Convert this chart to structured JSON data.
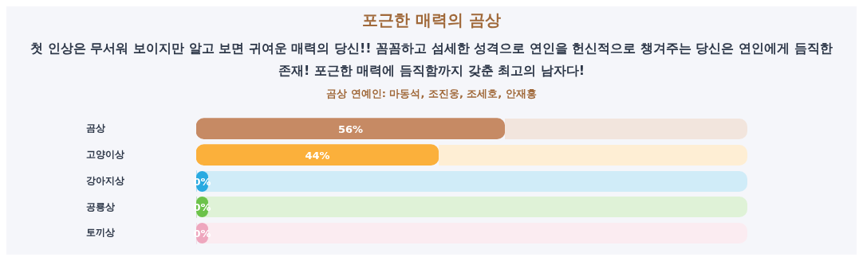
{
  "chart_data": {
    "type": "bar",
    "orientation": "horizontal",
    "title": "포근한 매력의 곰상",
    "subtitle": "첫 인상은 무서워 보이지만 알고 보면 귀여운 매력의 당신!! 꼼꼼하고 섬세한 성격으로 연인을 헌신적으로 챙겨주는 당신은 연인에게 듬직한 존재! 포근한 매력에 듬직함까지 갖춘 최고의 남자다!",
    "annotations": [
      "곰상 연예인: 마동석, 조진웅, 조세호, 안재홍"
    ],
    "categories": [
      "곰상",
      "고양이상",
      "강아지상",
      "공룡상",
      "토끼상"
    ],
    "values": [
      56,
      44,
      0,
      0,
      0
    ],
    "colors": [
      "#c68a64",
      "#fbb03b",
      "#29aae1",
      "#6cc24a",
      "#eea7be"
    ],
    "value_labels": [
      "56%",
      "44%",
      "0%",
      "0%",
      "0%"
    ],
    "xlim": [
      0,
      100
    ],
    "tick_labels": "y",
    "grid": false,
    "legend": false
  }
}
